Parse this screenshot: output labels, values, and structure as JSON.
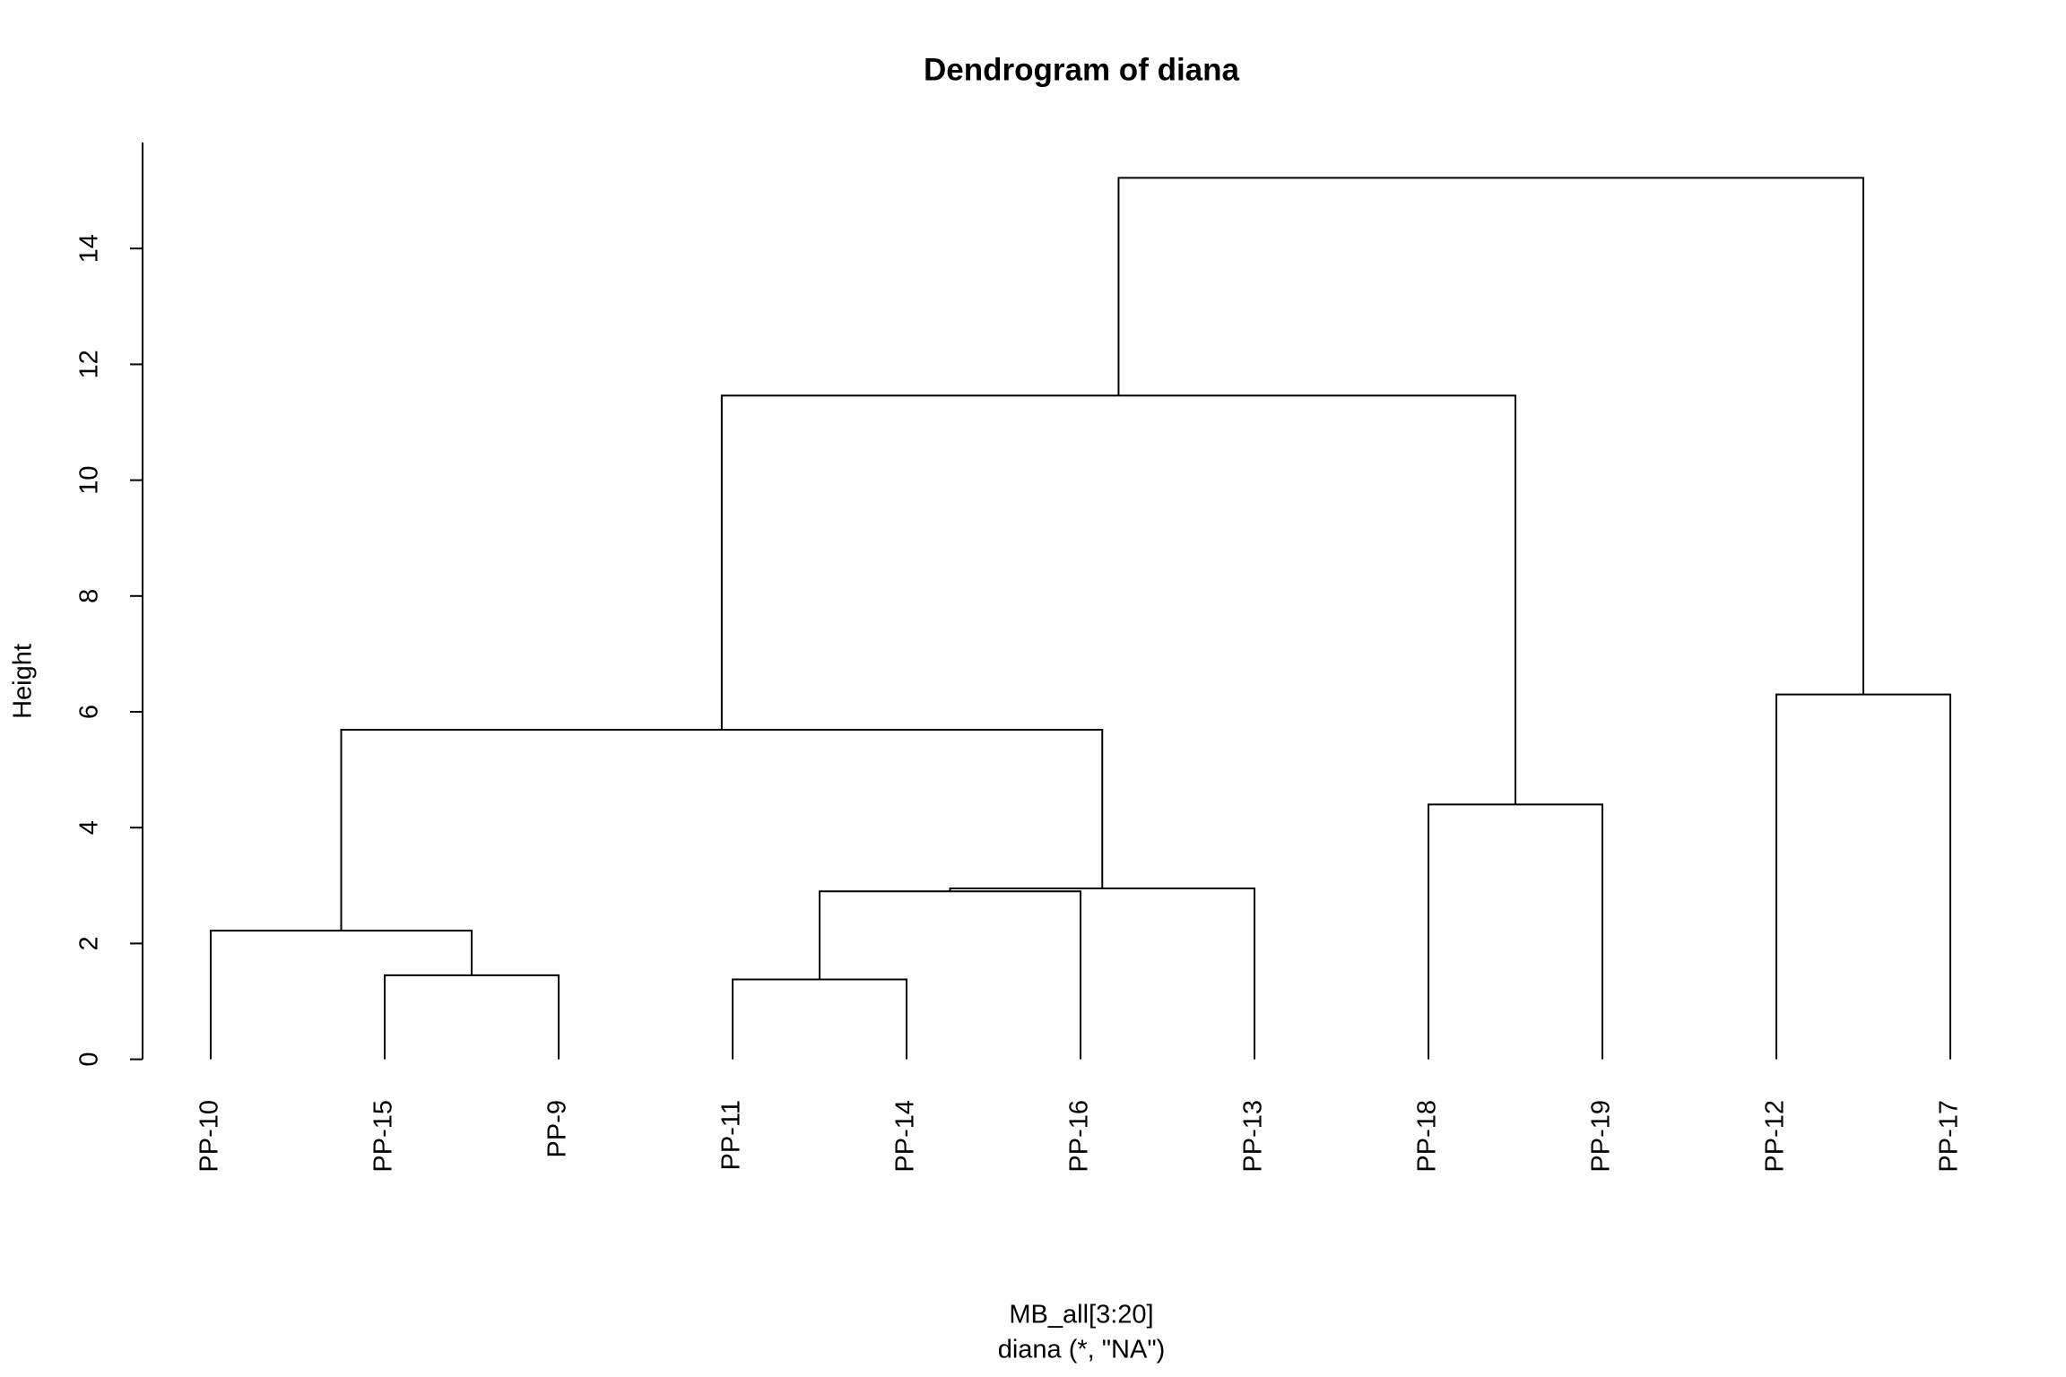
{
  "chart_data": {
    "type": "dendrogram",
    "title": "Dendrogram of diana",
    "y_label": "Height",
    "x_label": "MB_all[3:20]",
    "subtitle": "diana (*, \"NA\")",
    "ylim": [
      -0.61,
      15.83
    ],
    "yticks": [
      0,
      2,
      4,
      6,
      8,
      10,
      12,
      14
    ],
    "color": "#000000",
    "tree": {
      "height": 15.22,
      "children": [
        {
          "height": 11.46,
          "children": [
            {
              "height": 5.69,
              "children": [
                {
                  "height": 2.22,
                  "children": [
                    {
                      "label": "PP-10"
                    },
                    {
                      "height": 1.45,
                      "children": [
                        {
                          "label": "PP-15"
                        },
                        {
                          "label": "PP-9"
                        }
                      ]
                    }
                  ]
                },
                {
                  "height": 2.95,
                  "children": [
                    {
                      "height": 2.9,
                      "children": [
                        {
                          "height": 1.38,
                          "children": [
                            {
                              "label": "PP-11"
                            },
                            {
                              "label": "PP-14"
                            }
                          ]
                        },
                        {
                          "label": "PP-16"
                        }
                      ]
                    },
                    {
                      "label": "PP-13"
                    }
                  ]
                }
              ]
            },
            {
              "height": 4.4,
              "children": [
                {
                  "label": "PP-18"
                },
                {
                  "label": "PP-19"
                }
              ]
            }
          ]
        },
        {
          "height": 6.3,
          "children": [
            {
              "label": "PP-12"
            },
            {
              "label": "PP-17"
            }
          ]
        }
      ]
    }
  }
}
